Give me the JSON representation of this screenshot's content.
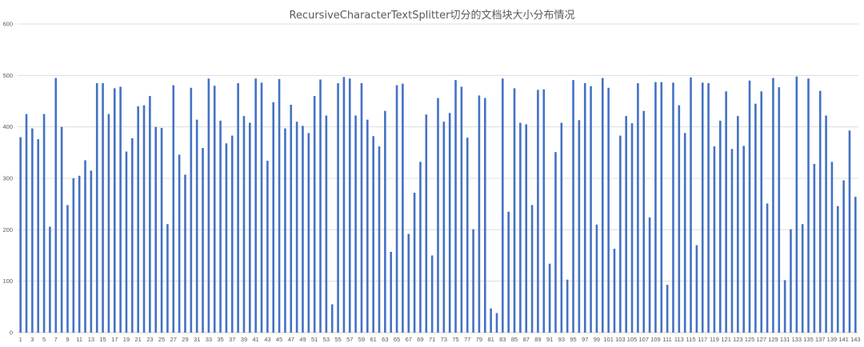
{
  "chart_data": {
    "type": "bar",
    "title": "RecursiveCharacterTextSplitter切分的文档块大小分布情况",
    "xlabel": "",
    "ylabel": "",
    "ylim": [
      0,
      600
    ],
    "yticks": [
      0,
      100,
      200,
      300,
      400,
      500,
      600
    ],
    "categories": [
      1,
      2,
      3,
      4,
      5,
      6,
      7,
      8,
      9,
      10,
      11,
      12,
      13,
      14,
      15,
      16,
      17,
      18,
      19,
      20,
      21,
      22,
      23,
      24,
      25,
      26,
      27,
      28,
      29,
      30,
      31,
      32,
      33,
      34,
      35,
      36,
      37,
      38,
      39,
      40,
      41,
      42,
      43,
      44,
      45,
      46,
      47,
      48,
      49,
      50,
      51,
      52,
      53,
      54,
      55,
      56,
      57,
      58,
      59,
      60,
      61,
      62,
      63,
      64,
      65,
      66,
      67,
      68,
      69,
      70,
      71,
      72,
      73,
      74,
      75,
      76,
      77,
      78,
      79,
      80,
      81,
      82,
      83,
      84,
      85,
      86,
      87,
      88,
      89,
      90,
      91,
      92,
      93,
      94,
      95,
      96,
      97,
      98,
      99,
      100,
      101,
      102,
      103,
      104,
      105,
      106,
      107,
      108,
      109,
      110,
      111,
      112,
      113,
      114,
      115,
      116,
      117,
      118,
      119,
      120,
      121,
      122,
      123,
      124,
      125,
      126,
      127,
      128,
      129,
      130,
      131,
      132,
      133,
      134,
      135,
      136,
      137,
      138,
      139,
      140,
      141,
      142,
      143
    ],
    "xtick_labels": [
      "1",
      "3",
      "5",
      "7",
      "9",
      "11",
      "13",
      "15",
      "17",
      "19",
      "21",
      "23",
      "25",
      "27",
      "29",
      "31",
      "33",
      "35",
      "37",
      "39",
      "41",
      "43",
      "45",
      "47",
      "49",
      "51",
      "53",
      "55",
      "57",
      "59",
      "61",
      "63",
      "65",
      "67",
      "69",
      "71",
      "73",
      "75",
      "77",
      "79",
      "81",
      "83",
      "85",
      "87",
      "89",
      "91",
      "93",
      "95",
      "97",
      "99",
      "101",
      "103",
      "105",
      "107",
      "109",
      "111",
      "113",
      "115",
      "117",
      "119",
      "121",
      "123",
      "125",
      "127",
      "129",
      "131",
      "133",
      "135",
      "137",
      "139",
      "141",
      "143"
    ],
    "values": [
      380,
      425,
      397,
      376,
      425,
      206,
      495,
      400,
      248,
      300,
      305,
      335,
      315,
      485,
      485,
      425,
      475,
      478,
      352,
      378,
      440,
      442,
      460,
      400,
      398,
      211,
      481,
      346,
      307,
      476,
      414,
      359,
      494,
      480,
      412,
      368,
      383,
      485,
      421,
      408,
      494,
      486,
      334,
      448,
      493,
      397,
      443,
      410,
      402,
      388,
      460,
      492,
      422,
      55,
      485,
      497,
      494,
      422,
      485,
      414,
      382,
      362,
      431,
      157,
      481,
      484,
      192,
      272,
      332,
      424,
      150,
      456,
      410,
      427,
      491,
      478,
      379,
      201,
      461,
      456,
      47,
      38,
      494,
      235,
      475,
      408,
      405,
      248,
      472,
      473,
      134,
      351,
      408,
      103,
      491,
      413,
      485,
      479,
      210,
      495,
      476,
      163,
      383,
      421,
      407,
      485,
      431,
      224,
      487,
      487,
      93,
      486,
      442,
      388,
      496,
      170,
      486,
      485,
      362,
      412,
      469,
      357,
      421,
      363,
      490,
      445,
      469,
      251,
      495,
      477,
      102,
      201,
      498,
      211,
      494,
      328,
      470,
      422,
      332,
      246,
      296,
      393,
      264
    ],
    "colors": {
      "bar": "#4472C4",
      "grid": "#D9D9D9",
      "text": "#595959"
    },
    "grid": true,
    "legend": "none"
  }
}
